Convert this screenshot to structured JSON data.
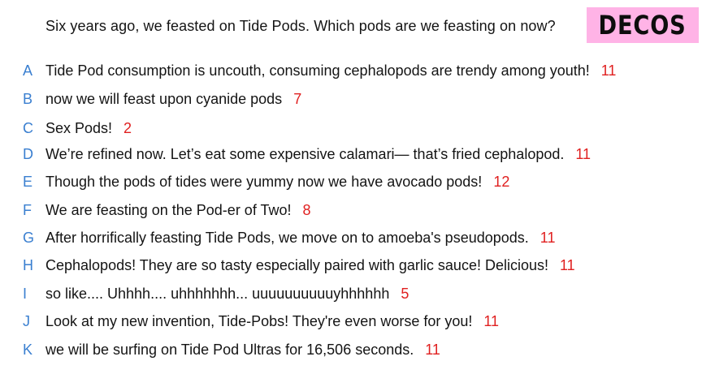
{
  "question": "Six years ago, we feasted on Tide Pods. Which pods are we feasting on now?",
  "badge": {
    "label": "DECOS",
    "color": "#ffb3e6"
  },
  "colors": {
    "letter": "#3a7fd0",
    "score": "#e02020"
  },
  "answers": [
    {
      "letter": "A",
      "text": "Tide Pod consumption is uncouth, consuming cephalopods are trendy among youth!",
      "score": "11"
    },
    {
      "letter": "B",
      "text": "now we will feast upon cyanide pods",
      "score": "7"
    },
    {
      "letter": "C",
      "text": "Sex Pods!",
      "score": "2"
    },
    {
      "letter": "D",
      "text": "We’re refined now. Let’s eat some expensive calamari— that’s fried cephalopod.",
      "score": "11"
    },
    {
      "letter": "E",
      "text": "Though the pods of tides were yummy now we have avocado pods!",
      "score": "12"
    },
    {
      "letter": "F",
      "text": "We are feasting on the Pod-er of Two!",
      "score": "8"
    },
    {
      "letter": "G",
      "text": "After horrifically feasting Tide Pods, we move on to amoeba's pseudopods.",
      "score": "11"
    },
    {
      "letter": "H",
      "text": "Cephalopods! They are so tasty especially paired with garlic sauce! Delicious!",
      "score": "11"
    },
    {
      "letter": "I",
      "text": "so like.... Uhhhh.... uhhhhhhh... uuuuuuuuuuyhhhhhh",
      "score": "5"
    },
    {
      "letter": "J",
      "text": "Look at my new invention, Tide-Pobs! They're even worse for you!",
      "score": "11"
    },
    {
      "letter": "K",
      "text": "we will be surfing on Tide Pod Ultras for 16,506 seconds.",
      "score": "11"
    }
  ]
}
